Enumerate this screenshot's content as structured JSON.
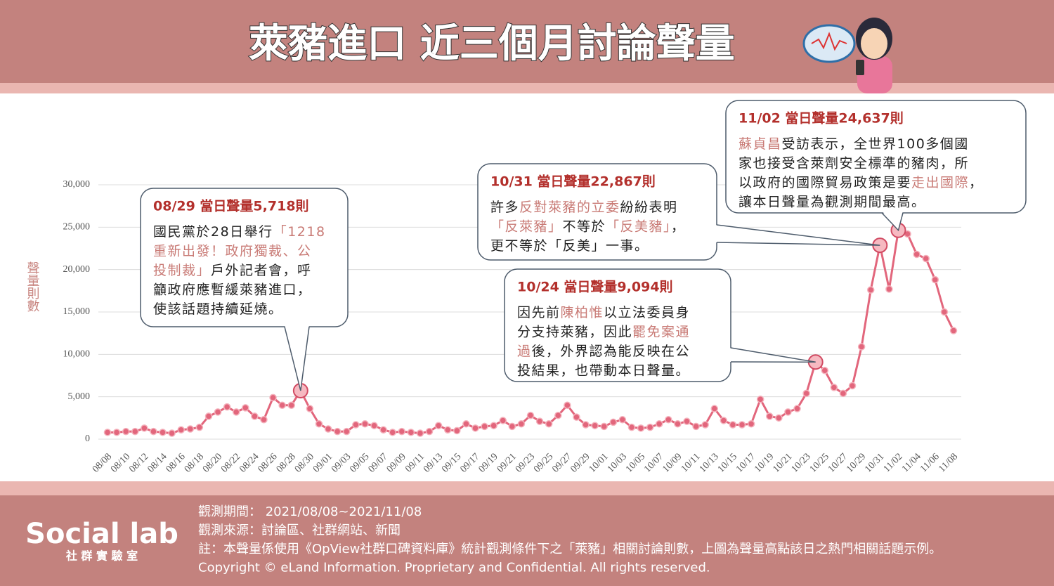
{
  "header": {
    "title": "萊豬進口 近三個月討論聲量"
  },
  "chart_data": {
    "type": "line",
    "y_label": "聲量則數",
    "categories": [
      "08/08",
      null,
      "08/10",
      null,
      "08/12",
      null,
      "08/14",
      null,
      "08/16",
      null,
      "08/18",
      null,
      "08/20",
      null,
      "08/22",
      null,
      "08/24",
      null,
      "08/26",
      null,
      "08/28",
      null,
      "08/30",
      null,
      "09/01",
      null,
      "09/03",
      null,
      "09/05",
      null,
      "09/07",
      null,
      "09/09",
      null,
      "09/11",
      null,
      "09/13",
      null,
      "09/15",
      null,
      "09/17",
      null,
      "09/19",
      null,
      "09/21",
      null,
      "09/23",
      null,
      "09/25",
      null,
      "09/27",
      null,
      "09/29",
      null,
      "10/01",
      null,
      "10/03",
      null,
      "10/05",
      null,
      "10/07",
      null,
      "10/09",
      null,
      "10/11",
      null,
      "10/13",
      null,
      "10/15",
      null,
      "10/17",
      null,
      "10/19",
      null,
      "10/21",
      null,
      "10/23",
      null,
      "10/25",
      null,
      "10/27",
      null,
      "10/29",
      null,
      "10/31",
      null,
      "11/02",
      null,
      "11/04",
      null,
      "11/06",
      null,
      "11/08"
    ],
    "values": [
      800,
      800,
      900,
      900,
      1300,
      900,
      800,
      700,
      1100,
      1200,
      1400,
      2700,
      3200,
      3800,
      3200,
      3700,
      2700,
      2300,
      4900,
      4000,
      4000,
      5718,
      3600,
      1800,
      1200,
      900,
      900,
      1700,
      1800,
      1600,
      1100,
      800,
      900,
      800,
      700,
      900,
      1600,
      1100,
      1000,
      1800,
      1300,
      1500,
      1600,
      2200,
      1500,
      1800,
      2800,
      2100,
      1800,
      2800,
      4000,
      2600,
      1700,
      1600,
      1500,
      2000,
      2300,
      1400,
      1300,
      1400,
      1800,
      2300,
      1800,
      2100,
      1500,
      1700,
      3600,
      2200,
      1700,
      1700,
      1800,
      4700,
      2700,
      2500,
      3200,
      3600,
      5400,
      9094,
      8100,
      6100,
      5400,
      6300,
      10900,
      17600,
      22867,
      17700,
      24637,
      24200,
      21800,
      21300,
      18800,
      15000,
      12800
    ],
    "color": "#e2667c",
    "ylim": [
      0,
      30000
    ],
    "yticks": [
      0,
      {
        "value": 5000,
        "label": "5,000"
      },
      {
        "value": 10000,
        "label": "10,000"
      },
      {
        "value": 15000,
        "label": "15,000"
      },
      {
        "value": 20000,
        "label": "20,000"
      },
      {
        "value": 25000,
        "label": "25,000"
      },
      {
        "value": 30000,
        "label": "30,000"
      }
    ],
    "grid": true,
    "annotations": [
      {
        "title": "08/29 當日聲量5,718則",
        "lines": [
          [
            "國民黨於28日舉行",
            {
              "text": "「1218",
              "color": "#c97b76"
            }
          ],
          [
            {
              "text": "重新出發！政府獨裁、公",
              "color": "#c97b76"
            }
          ],
          [
            {
              "text": "投制裁」",
              "color": "#c97b76"
            },
            "戶外記者會，呼"
          ],
          [
            "籲政府應暫緩萊豬進口，"
          ],
          [
            "使該話題持續延燒。"
          ]
        ]
      },
      {
        "title": "10/31 當日聲量22,867則",
        "lines": [
          [
            "許多",
            {
              "text": "反對萊豬的立委",
              "color": "#c97b76"
            },
            "紛紛表明"
          ],
          [
            {
              "text": "「反萊豬」",
              "color": "#c97b76"
            },
            "不等於",
            {
              "text": "「反美豬」",
              "color": "#c97b76"
            },
            "，"
          ],
          [
            "更不等於「反美」一事。"
          ]
        ]
      },
      {
        "title": "10/24 當日聲量9,094則",
        "lines": [
          [
            "因先前",
            {
              "text": "陳柏惟",
              "color": "#c97b76"
            },
            "以立法委員身"
          ],
          [
            "分支持萊豬，因此",
            {
              "text": "罷免案通",
              "color": "#c97b76"
            }
          ],
          [
            {
              "text": "過",
              "color": "#c97b76"
            },
            "後，外界認為能反映在公"
          ],
          [
            "投結果，也帶動本日聲量。"
          ]
        ]
      },
      {
        "title": "11/02 當日聲量24,637則",
        "lines": [
          [
            {
              "text": "蘇貞昌",
              "color": "#c97b76"
            },
            "受訪表示，全世界100多個國"
          ],
          [
            "家也接受含萊劑安全標準的豬肉，所"
          ],
          [
            "以政府的國際貿易政策是要",
            {
              "text": "走出國際",
              "color": "#c97b76"
            },
            "，"
          ],
          [
            "讓本日聲量為觀測期間最高。"
          ]
        ]
      }
    ]
  },
  "footer": {
    "logo": "Social lab",
    "logo_sub": "社 群 實 驗 室",
    "lines": [
      "觀測期間： 2021/08/08~2021/11/08",
      "觀測來源：討論區、社群網站、新聞",
      "註：本聲量係使用《OpView社群口碑資料庫》統計觀測條件下之「萊豬」相關討論則數，上圖為聲量高點該日之熱門相關話題示例。",
      "Copyright © eLand Information. Proprietary and Confidential. All rights reserved."
    ]
  }
}
